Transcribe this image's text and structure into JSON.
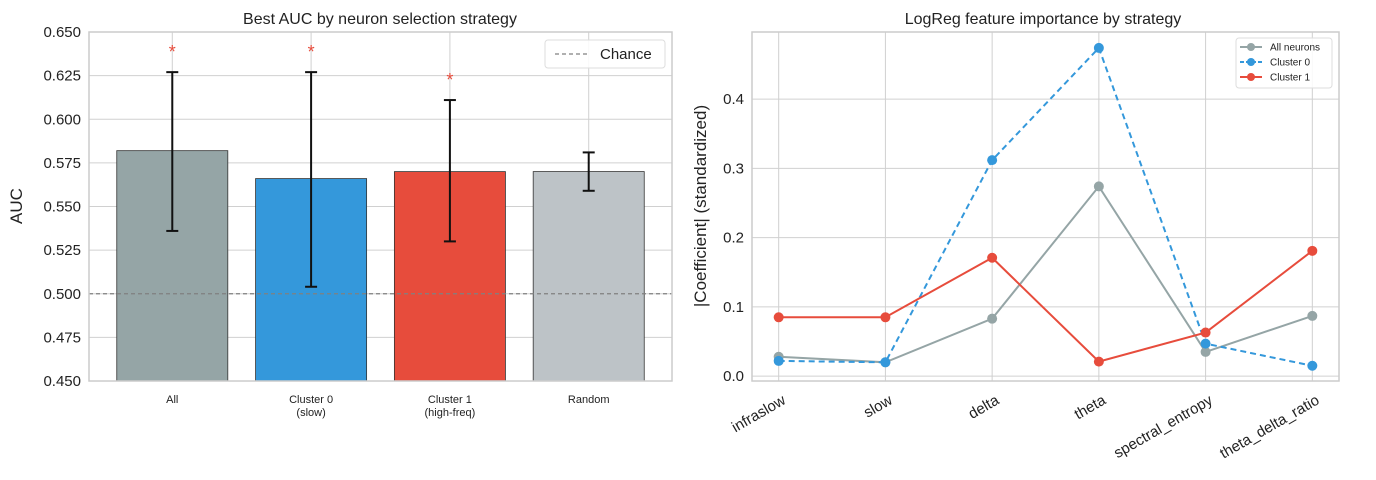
{
  "chart_data": [
    {
      "type": "bar",
      "title": "Best AUC by neuron selection strategy",
      "xlabel": "",
      "ylabel": "AUC",
      "ylim": [
        0.45,
        0.65
      ],
      "yticks": [
        "0.450",
        "0.475",
        "0.500",
        "0.525",
        "0.550",
        "0.575",
        "0.600",
        "0.625",
        "0.650"
      ],
      "categories": [
        [
          "All"
        ],
        [
          "Cluster 0",
          "(slow)"
        ],
        [
          "Cluster 1",
          "(high-freq)"
        ],
        [
          "Random"
        ]
      ],
      "values": [
        0.582,
        0.566,
        0.57,
        0.57
      ],
      "error_low": [
        0.536,
        0.504,
        0.53,
        0.559
      ],
      "error_high": [
        0.627,
        0.627,
        0.611,
        0.581
      ],
      "colors": [
        "#95a5a6",
        "#3498db",
        "#e74c3c",
        "#bdc3c7"
      ],
      "significance": [
        "*",
        "*",
        "*",
        ""
      ],
      "significance_color": "#e74c3c",
      "reference_line": {
        "y": 0.5,
        "label": "Chance",
        "color": "#808080"
      },
      "grid": true,
      "legend": "top-right"
    },
    {
      "type": "line",
      "title": "LogReg feature importance by strategy",
      "xlabel": "",
      "ylabel": "|Coefficient| (standardized)",
      "ylim": [
        -0.007,
        0.497
      ],
      "yticks": [
        "0.0",
        "0.1",
        "0.2",
        "0.3",
        "0.4"
      ],
      "categories": [
        "infraslow",
        "slow",
        "delta",
        "theta",
        "spectral_entropy",
        "theta_delta_ratio"
      ],
      "series": [
        {
          "name": "All neurons",
          "color": "#95a5a6",
          "dash": false,
          "values": [
            0.028,
            0.02,
            0.083,
            0.274,
            0.035,
            0.087
          ]
        },
        {
          "name": "Cluster 0",
          "color": "#3498db",
          "dash": true,
          "values": [
            0.022,
            0.02,
            0.312,
            0.474,
            0.047,
            0.015
          ]
        },
        {
          "name": "Cluster 1",
          "color": "#e74c3c",
          "dash": false,
          "values": [
            0.085,
            0.085,
            0.171,
            0.021,
            0.063,
            0.181
          ]
        }
      ],
      "grid": true,
      "legend": "top-right"
    }
  ]
}
